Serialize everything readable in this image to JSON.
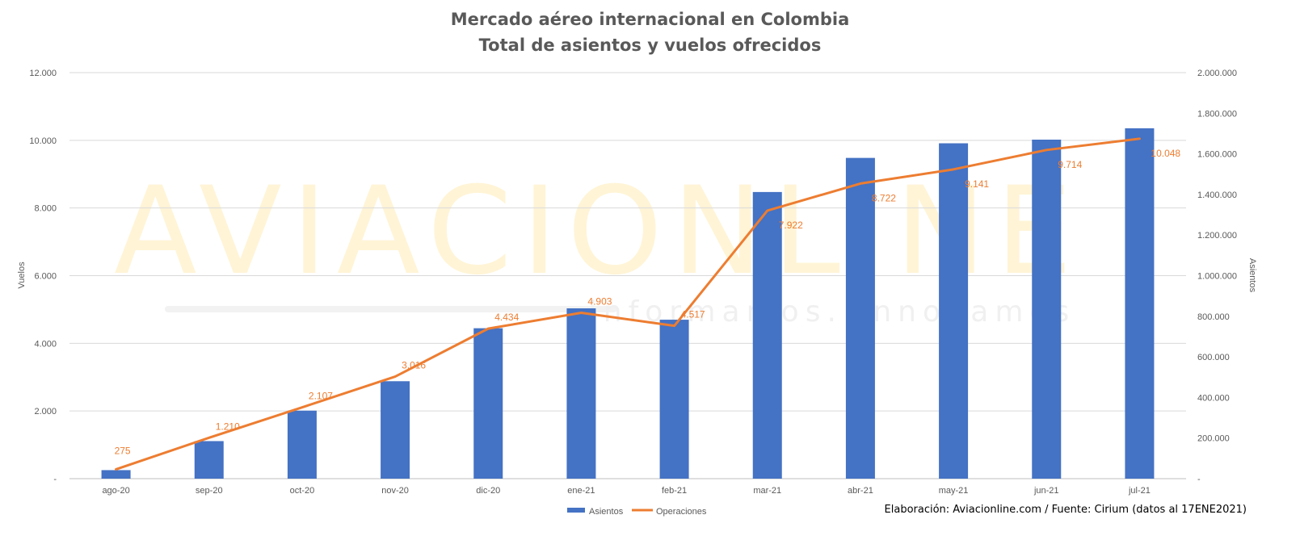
{
  "chart_data": {
    "type": "bar",
    "title": "Mercado aéreo internacional en Colombia",
    "subtitle": "Total de asientos y vuelos ofrecidos",
    "categories": [
      "ago-20",
      "sep-20",
      "oct-20",
      "nov-20",
      "dic-20",
      "ene-21",
      "feb-21",
      "mar-21",
      "abr-21",
      "may-21",
      "jun-21",
      "jul-21"
    ],
    "series": [
      {
        "name": "Asientos",
        "type": "bar",
        "axis": "right",
        "color": "#4472C4",
        "values": [
          42000,
          185000,
          335000,
          480000,
          741000,
          839000,
          783000,
          1412000,
          1580000,
          1652000,
          1670000,
          1726000
        ]
      },
      {
        "name": "Operaciones",
        "type": "line",
        "axis": "left",
        "color": "#ED7D31",
        "values": [
          275,
          1210,
          2107,
          3016,
          4434,
          4903,
          4517,
          7922,
          8722,
          9141,
          9714,
          10048
        ],
        "labels": [
          "275",
          "1.210",
          "2.107",
          "3.016",
          "4.434",
          "4.903",
          "4.517",
          "7.922",
          "8.722",
          "9.141",
          "9.714",
          "10.048"
        ]
      }
    ],
    "ylabel_left": "Vuelos",
    "ylabel_right": "Asientos",
    "ylim_left": [
      0,
      12000
    ],
    "ylim_right": [
      0,
      2000000
    ],
    "yticks_left": [
      "-",
      "2.000",
      "4.000",
      "6.000",
      "8.000",
      "10.000",
      "12.000"
    ],
    "yticks_right": [
      "-",
      "200.000",
      "400.000",
      "600.000",
      "800.000",
      "1.000.000",
      "1.200.000",
      "1.400.000",
      "1.600.000",
      "1.800.000",
      "2.000.000"
    ],
    "grid": true,
    "legend_position": "bottom",
    "legend": [
      "Asientos",
      "Operaciones"
    ]
  },
  "credit": "Elaboración: Aviacionline.com / Fuente: Cirium (datos al 17ENE2021)",
  "watermark": {
    "brand": "AVIACIONLINE",
    "tagline": "informamos. innovamos"
  }
}
